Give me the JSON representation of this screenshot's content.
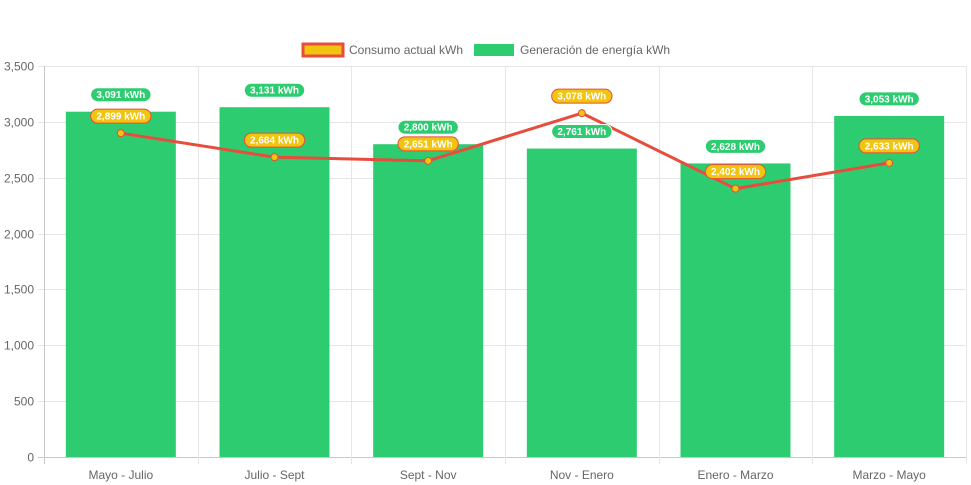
{
  "chart_data": {
    "type": "bar",
    "categories": [
      "Mayo - Julio",
      "Julio - Sept",
      "Sept - Nov",
      "Nov - Enero",
      "Enero - Marzo",
      "Marzo - Mayo"
    ],
    "series": [
      {
        "name": "Consumo actual kWh",
        "type": "line",
        "values": [
          2899,
          2684,
          2651,
          3078,
          2402,
          2633
        ],
        "labels": [
          "2,899 kWh",
          "2,684 kWh",
          "2,651 kWh",
          "3,078 kWh",
          "2,402 kWh",
          "2,633 kWh"
        ],
        "color": "#e74c3c",
        "fill_color": "#f1c40f"
      },
      {
        "name": "Generación de energía kWh",
        "type": "bar",
        "values": [
          3091,
          3131,
          2800,
          2761,
          2628,
          3053
        ],
        "labels": [
          "3,091 kWh",
          "3,131 kWh",
          "2,800 kWh",
          "2,761 kWh",
          "2,628 kWh",
          "3,053 kWh"
        ],
        "color": "#2ecc71"
      }
    ],
    "ylim": [
      0,
      3500
    ],
    "yticks": [
      "0",
      "500",
      "1,000",
      "1,500",
      "2,000",
      "2,500",
      "3,000",
      "3,500"
    ],
    "grid": true,
    "legend_position": "top"
  }
}
